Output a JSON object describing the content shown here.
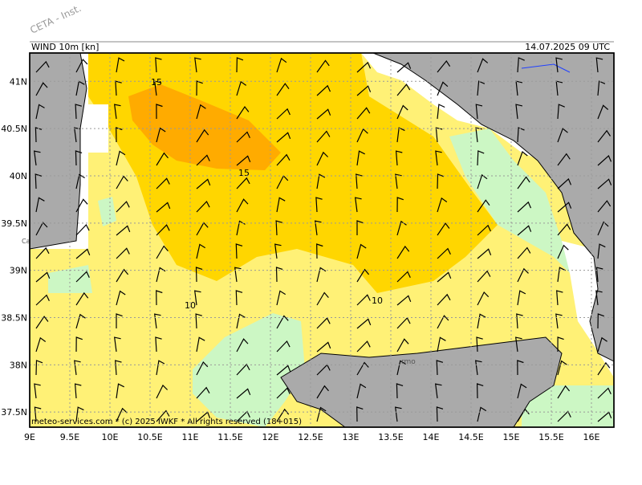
{
  "watermark": "CETA - Inst.",
  "header": {
    "title": "WIND 10m [kn]",
    "timestamp": "14.07.2025 09 UTC"
  },
  "map": {
    "lon_extent": [
      9,
      16.28
    ],
    "lat_extent": [
      37.34,
      41.3
    ],
    "lat_ticks": [
      {
        "value": 41,
        "label": "41N"
      },
      {
        "value": 40.5,
        "label": "40.5N"
      },
      {
        "value": 40,
        "label": "40N"
      },
      {
        "value": 39.5,
        "label": "39.5N"
      },
      {
        "value": 39,
        "label": "39N"
      },
      {
        "value": 38.5,
        "label": "38.5N"
      },
      {
        "value": 38,
        "label": "38N"
      },
      {
        "value": 37.5,
        "label": "37.5N"
      }
    ],
    "lon_ticks": [
      {
        "value": 9,
        "label": "9E"
      },
      {
        "value": 9.5,
        "label": "9.5E"
      },
      {
        "value": 10,
        "label": "10E"
      },
      {
        "value": 10.5,
        "label": "10.5E"
      },
      {
        "value": 11,
        "label": "11E"
      },
      {
        "value": 11.5,
        "label": "11.5E"
      },
      {
        "value": 12,
        "label": "12E"
      },
      {
        "value": 12.5,
        "label": "12.5E"
      },
      {
        "value": 13,
        "label": "13E"
      },
      {
        "value": 13.5,
        "label": "13.5E"
      },
      {
        "value": 14,
        "label": "14E"
      },
      {
        "value": 14.5,
        "label": "14.5E"
      },
      {
        "value": 15,
        "label": "15E"
      },
      {
        "value": 15.5,
        "label": "15.5E"
      },
      {
        "value": 16,
        "label": "16E"
      }
    ],
    "contour_labels": [
      "15",
      "15",
      "10",
      "10"
    ],
    "place_labels": [
      "rmo",
      "Ca"
    ]
  },
  "footer": "meteo-services.com * (c) 2025 IWKF * All rights reserved (18+015)"
}
